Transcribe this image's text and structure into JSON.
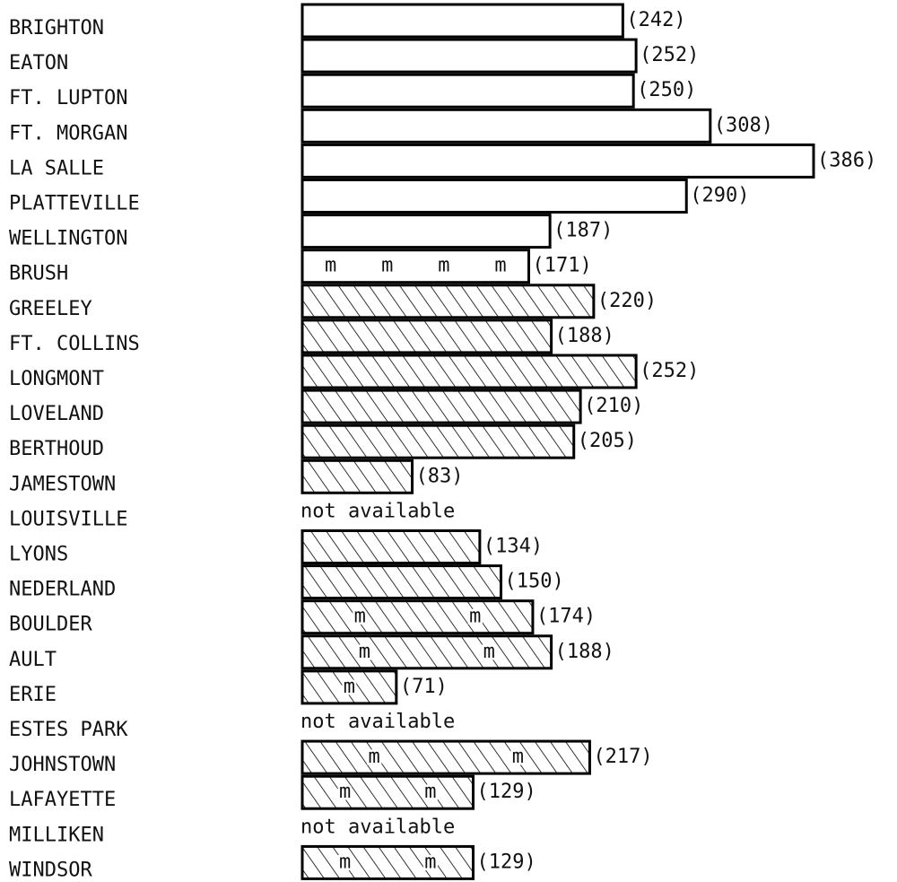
{
  "chart_data": {
    "type": "bar",
    "orientation": "horizontal",
    "categories": [
      "BRIGHTON",
      "EATON",
      "FT. LUPTON",
      "FT. MORGAN",
      "LA SALLE",
      "PLATTEVILLE",
      "WELLINGTON",
      "BRUSH",
      "GREELEY",
      "FT. COLLINS",
      "LONGMONT",
      "LOVELAND",
      "BERTHOUD",
      "JAMESTOWN",
      "LOUISVILLE",
      "LYONS",
      "NEDERLAND",
      "BOULDER",
      "AULT",
      "ERIE",
      "ESTES PARK",
      "JOHNSTOWN",
      "LAFAYETTE",
      "MILLIKEN",
      "WINDSOR"
    ],
    "values": [
      242,
      252,
      250,
      308,
      386,
      290,
      187,
      171,
      220,
      188,
      252,
      210,
      205,
      83,
      null,
      134,
      150,
      174,
      188,
      71,
      null,
      217,
      129,
      null,
      129
    ],
    "value_labels": [
      "(242)",
      "(252)",
      "(250)",
      "(308)",
      "(386)",
      "(290)",
      "(187)",
      "(171)",
      "(220)",
      "(188)",
      "(252)",
      "(210)",
      "(205)",
      "(83)",
      "not available",
      "(134)",
      "(150)",
      "(174)",
      "(188)",
      "(71)",
      "not available",
      "(217)",
      "(129)",
      "not available",
      "(129)"
    ],
    "hatched": [
      false,
      false,
      false,
      false,
      false,
      false,
      false,
      false,
      true,
      true,
      true,
      true,
      true,
      true,
      false,
      true,
      true,
      true,
      true,
      true,
      false,
      true,
      true,
      false,
      true
    ],
    "inner_mark_text": "m",
    "inner_mark_counts": [
      0,
      0,
      0,
      0,
      0,
      0,
      0,
      4,
      0,
      0,
      0,
      0,
      0,
      0,
      0,
      0,
      0,
      2,
      2,
      1,
      0,
      2,
      2,
      0,
      2
    ],
    "color": "#ffffff",
    "edge_color": "#000000"
  }
}
